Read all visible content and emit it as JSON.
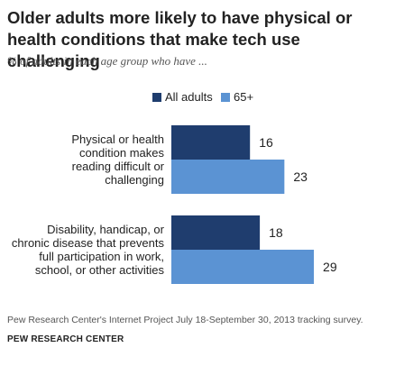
{
  "title": "Older adults more likely to have physical or health conditions that make tech use challenging",
  "subtitle": "% of adults in each age group who have ...",
  "legend": [
    {
      "label": "All adults",
      "color": "#1f3d6e"
    },
    {
      "label": "65+",
      "color": "#5b93d3"
    }
  ],
  "chart_data": {
    "type": "bar",
    "orientation": "horizontal",
    "categories": [
      [
        "Physical or health",
        "condition makes",
        "reading difficult or",
        "challenging"
      ],
      [
        "Disability, handicap, or",
        "chronic disease that prevents",
        "full participation in work,",
        "school, or other activities"
      ]
    ],
    "series": [
      {
        "name": "All adults",
        "values": [
          16,
          18
        ],
        "color": "#1f3d6e"
      },
      {
        "name": "65+",
        "values": [
          23,
          29
        ],
        "color": "#5b93d3"
      }
    ],
    "xlim": [
      0,
      29
    ],
    "grid": false,
    "legend_position": "top"
  },
  "footer": {
    "source": "Pew Research Center's Internet Project July 18-September 30, 2013 tracking survey.",
    "org": "PEW RESEARCH CENTER"
  }
}
